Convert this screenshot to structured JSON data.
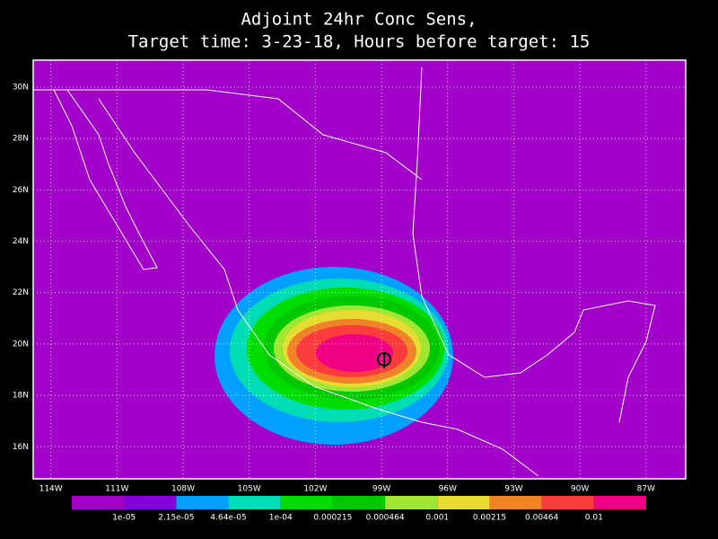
{
  "chart_data": {
    "type": "contour",
    "title": [
      "Adjoint 24hr Conc Sens,",
      "Target time: 3-23-18, Hours before target: 15"
    ],
    "xlim": [
      -114.8,
      -85.2
    ],
    "ylim": [
      14.75,
      31.05
    ],
    "xticks": [
      {
        "value": -114,
        "label": "114W"
      },
      {
        "value": -111,
        "label": "111W"
      },
      {
        "value": -108,
        "label": "108W"
      },
      {
        "value": -105,
        "label": "105W"
      },
      {
        "value": -102,
        "label": "102W"
      },
      {
        "value": -99,
        "label": "99W"
      },
      {
        "value": -96,
        "label": "96W"
      },
      {
        "value": -93,
        "label": "93W"
      },
      {
        "value": -90,
        "label": "90W"
      },
      {
        "value": -87,
        "label": "87W"
      }
    ],
    "yticks": [
      {
        "value": 16,
        "label": "16N"
      },
      {
        "value": 18,
        "label": "18N"
      },
      {
        "value": 20,
        "label": "20N"
      },
      {
        "value": 22,
        "label": "22N"
      },
      {
        "value": 24,
        "label": "24N"
      },
      {
        "value": 26,
        "label": "26N"
      },
      {
        "value": 28,
        "label": "28N"
      },
      {
        "value": 30,
        "label": "30N"
      }
    ],
    "grid": true,
    "levels": [
      {
        "value": 1e-05,
        "label": "1e-05"
      },
      {
        "value": 2.15e-05,
        "label": "2.15e-05"
      },
      {
        "value": 4.64e-05,
        "label": "4.64e-05"
      },
      {
        "value": 0.0001,
        "label": "1e-04"
      },
      0.000215,
      0.000464,
      0.001,
      0.00215,
      0.00464,
      0.01
    ],
    "colors": [
      "#a000c8",
      "#8200dc",
      "#00a0ff",
      "#00dcb4",
      "#00dc00",
      "#00c800",
      "#a0e632",
      "#e6dc32",
      "#f08228",
      "#fa3c3c",
      "#f00082"
    ]
  }
}
